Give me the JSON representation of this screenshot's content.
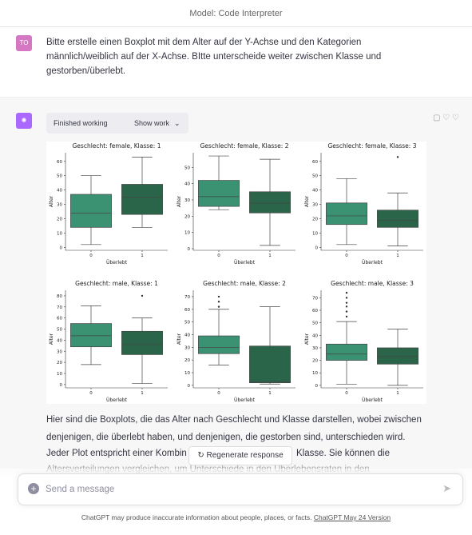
{
  "header": {
    "model": "Model: Code Interpreter"
  },
  "user": {
    "avatar": "TO",
    "text": "Bitte erstelle einen Boxplot mit dem Alter auf der Y-Achse und den Kategorien männlich/weiblich auf der X-Achse. BItte unterscheide weiter zwischen Klasse und gestorben/überlebt."
  },
  "assistant": {
    "status": "Finished working",
    "show_work": "Show work",
    "lines": [
      "Hier sind die Boxplots, die das Alter nach Geschlecht und Klasse darstellen, wobei zwischen",
      "denjenigen, die überlebt haben, und denjenigen, die gestorben sind, unterschieden wird.",
      "Jeder Plot entspricht einer Kombin",
      "Klasse. Sie können die",
      "Altersverteilungen vergleichen, um Unterschiede in den Überlebensraten in den"
    ]
  },
  "plot": {
    "colors": [
      "#3a9273",
      "#2b6549"
    ],
    "panels": [
      {
        "title": "Geschlecht: female, Klasse: 1",
        "xlabel": "Überlebt",
        "ylabel": "Alter",
        "categories": [
          "0",
          "1"
        ],
        "ylim": [
          -2,
          66
        ],
        "yticks": [
          0,
          10,
          20,
          30,
          40,
          50,
          60
        ],
        "boxes": [
          {
            "whislo": 2,
            "q1": 14,
            "med": 24,
            "q3": 37,
            "whishi": 50,
            "fliers": []
          },
          {
            "whislo": 14,
            "q1": 23,
            "med": 35,
            "q3": 44,
            "whishi": 63,
            "fliers": []
          }
        ]
      },
      {
        "title": "Geschlecht: female, Klasse: 2",
        "xlabel": "Überlebt",
        "ylabel": "Alter",
        "categories": [
          "0",
          "1"
        ],
        "ylim": [
          -1,
          59
        ],
        "yticks": [
          0,
          10,
          20,
          30,
          40,
          50
        ],
        "boxes": [
          {
            "whislo": 24,
            "q1": 26,
            "med": 32,
            "q3": 42,
            "whishi": 57,
            "fliers": []
          },
          {
            "whislo": 2,
            "q1": 22,
            "med": 28,
            "q3": 35,
            "whishi": 55,
            "fliers": []
          }
        ]
      },
      {
        "title": "Geschlecht: female, Klasse: 3",
        "xlabel": "Überlebt",
        "ylabel": "Alter",
        "categories": [
          "0",
          "1"
        ],
        "ylim": [
          -2,
          66
        ],
        "yticks": [
          0,
          10,
          20,
          30,
          40,
          50,
          60
        ],
        "boxes": [
          {
            "whislo": 2,
            "q1": 16,
            "med": 22,
            "q3": 31,
            "whishi": 48,
            "fliers": []
          },
          {
            "whislo": 1,
            "q1": 14,
            "med": 19,
            "q3": 26,
            "whishi": 38,
            "fliers": [
              63
            ]
          }
        ]
      },
      {
        "title": "Geschlecht: male, Klasse: 1",
        "xlabel": "Überlebt",
        "ylabel": "Alter",
        "categories": [
          "0",
          "1"
        ],
        "ylim": [
          -3,
          85
        ],
        "yticks": [
          0,
          10,
          20,
          30,
          40,
          50,
          60,
          70,
          80
        ],
        "boxes": [
          {
            "whislo": 18,
            "q1": 34,
            "med": 44,
            "q3": 55,
            "whishi": 71,
            "fliers": []
          },
          {
            "whislo": 1,
            "q1": 27,
            "med": 36,
            "q3": 48,
            "whishi": 60,
            "fliers": [
              80
            ]
          }
        ]
      },
      {
        "title": "Geschlecht: male, Klasse: 2",
        "xlabel": "Überlebt",
        "ylabel": "Alter",
        "categories": [
          "0",
          "1"
        ],
        "ylim": [
          -2,
          75
        ],
        "yticks": [
          0,
          10,
          20,
          30,
          40,
          50,
          60,
          70
        ],
        "boxes": [
          {
            "whislo": 16,
            "q1": 25,
            "med": 30,
            "q3": 39,
            "whishi": 60,
            "fliers": [
              62,
              66,
              70
            ]
          },
          {
            "whislo": 1,
            "q1": 2,
            "med": 3,
            "q3": 31,
            "whishi": 62,
            "fliers": []
          }
        ]
      },
      {
        "title": "Geschlecht: male, Klasse: 3",
        "xlabel": "Überlebt",
        "ylabel": "Alter",
        "categories": [
          "0",
          "1"
        ],
        "ylim": [
          -2,
          76
        ],
        "yticks": [
          0,
          10,
          20,
          30,
          40,
          50,
          60,
          70
        ],
        "boxes": [
          {
            "whislo": 1,
            "q1": 20,
            "med": 25,
            "q3": 33,
            "whishi": 51,
            "fliers": [
              55,
              59,
              63,
              66,
              70,
              74
            ]
          },
          {
            "whislo": 0,
            "q1": 17,
            "med": 23,
            "q3": 30,
            "whishi": 45,
            "fliers": []
          }
        ]
      }
    ]
  },
  "regenerate": "Regenerate response",
  "input": {
    "placeholder": "Send a message"
  },
  "footer": {
    "text": "ChatGPT may produce inaccurate information about people, places, or facts.",
    "link": "ChatGPT May 24 Version"
  }
}
